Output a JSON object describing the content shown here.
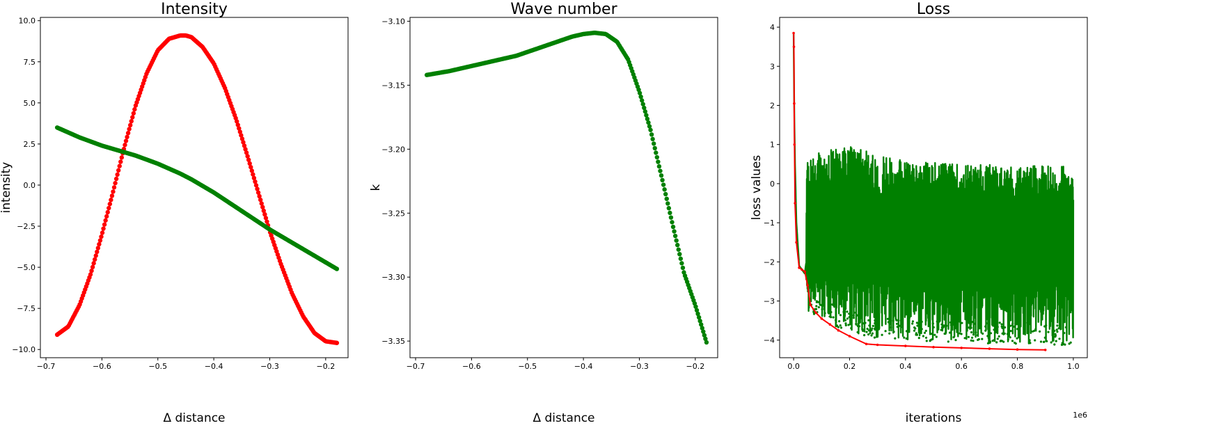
{
  "chart_data": [
    {
      "type": "scatter",
      "title": "Intensity",
      "xlabel": "Δ distance",
      "ylabel": "intensity",
      "xlim": [
        -0.71,
        -0.16
      ],
      "ylim": [
        -10.5,
        10.2
      ],
      "xticks": [
        -0.7,
        -0.6,
        -0.5,
        -0.4,
        -0.3,
        -0.2
      ],
      "xtick_labels": [
        "−0.7",
        "−0.6",
        "−0.5",
        "−0.4",
        "−0.3",
        "−0.2"
      ],
      "yticks": [
        10.0,
        7.5,
        5.0,
        2.5,
        0.0,
        -2.5,
        -5.0,
        -7.5,
        -10.0
      ],
      "ytick_labels": [
        "10.0",
        "7.5",
        "5.0",
        "2.5",
        "0.0",
        "−2.5",
        "−5.0",
        "−7.5",
        "−10.0"
      ],
      "grid": false,
      "series": [
        {
          "color": "#ff0000",
          "x": [
            -0.68,
            -0.66,
            -0.64,
            -0.62,
            -0.6,
            -0.58,
            -0.56,
            -0.54,
            -0.52,
            -0.5,
            -0.48,
            -0.46,
            -0.45,
            -0.44,
            -0.42,
            -0.4,
            -0.38,
            -0.36,
            -0.34,
            -0.32,
            -0.3,
            -0.28,
            -0.26,
            -0.24,
            -0.22,
            -0.2,
            -0.18
          ],
          "y": [
            -9.1,
            -8.6,
            -7.3,
            -5.4,
            -3.0,
            -0.4,
            2.3,
            4.8,
            6.8,
            8.2,
            8.9,
            9.1,
            9.1,
            9.0,
            8.4,
            7.4,
            5.9,
            4.0,
            1.8,
            -0.5,
            -2.8,
            -4.8,
            -6.6,
            -8.0,
            -9.0,
            -9.5,
            -9.6
          ]
        },
        {
          "color": "#008000",
          "x": [
            -0.68,
            -0.66,
            -0.64,
            -0.62,
            -0.6,
            -0.58,
            -0.56,
            -0.54,
            -0.52,
            -0.5,
            -0.48,
            -0.46,
            -0.44,
            -0.42,
            -0.4,
            -0.38,
            -0.36,
            -0.34,
            -0.32,
            -0.3,
            -0.28,
            -0.26,
            -0.24,
            -0.22,
            -0.2,
            -0.18
          ],
          "y": [
            3.5,
            3.2,
            2.9,
            2.65,
            2.4,
            2.2,
            2.0,
            1.8,
            1.55,
            1.3,
            1.0,
            0.7,
            0.35,
            -0.05,
            -0.45,
            -0.9,
            -1.35,
            -1.8,
            -2.25,
            -2.7,
            -3.1,
            -3.5,
            -3.9,
            -4.3,
            -4.7,
            -5.1
          ]
        }
      ]
    },
    {
      "type": "scatter",
      "title": "Wave number",
      "xlabel": "Δ distance",
      "ylabel": "k",
      "xlim": [
        -0.71,
        -0.16
      ],
      "ylim": [
        -3.363,
        -3.097
      ],
      "xticks": [
        -0.7,
        -0.6,
        -0.5,
        -0.4,
        -0.3,
        -0.2
      ],
      "xtick_labels": [
        "−0.7",
        "−0.6",
        "−0.5",
        "−0.4",
        "−0.3",
        "−0.2"
      ],
      "yticks": [
        -3.1,
        -3.15,
        -3.2,
        -3.25,
        -3.3,
        -3.35
      ],
      "ytick_labels": [
        "−3.10",
        "−3.15",
        "−3.20",
        "−3.25",
        "−3.30",
        "−3.35"
      ],
      "grid": false,
      "series": [
        {
          "color": "#008000",
          "x": [
            -0.68,
            -0.64,
            -0.6,
            -0.56,
            -0.52,
            -0.48,
            -0.44,
            -0.42,
            -0.4,
            -0.38,
            -0.36,
            -0.34,
            -0.32,
            -0.3,
            -0.28,
            -0.26,
            -0.24,
            -0.22,
            -0.2,
            -0.18
          ],
          "y": [
            -3.142,
            -3.139,
            -3.135,
            -3.131,
            -3.127,
            -3.121,
            -3.115,
            -3.112,
            -3.11,
            -3.109,
            -3.11,
            -3.116,
            -3.13,
            -3.155,
            -3.185,
            -3.222,
            -3.26,
            -3.297,
            -3.322,
            -3.351
          ]
        }
      ]
    },
    {
      "type": "line",
      "title": "Loss",
      "xlabel": "iterations",
      "ylabel": "loss values",
      "x_offset_label": "1e6",
      "xlim": [
        -0.05,
        1.05
      ],
      "ylim": [
        -4.45,
        4.25
      ],
      "xticks": [
        0.0,
        0.2,
        0.4,
        0.6,
        0.8,
        1.0
      ],
      "xtick_labels": [
        "0.0",
        "0.2",
        "0.4",
        "0.6",
        "0.8",
        "1.0"
      ],
      "yticks": [
        4,
        3,
        2,
        1,
        0,
        -1,
        -2,
        -3,
        -4
      ],
      "ytick_labels": [
        "4",
        "3",
        "2",
        "1",
        "0",
        "−1",
        "−2",
        "−3",
        "−4"
      ],
      "grid": false,
      "series": [
        {
          "color": "#008000",
          "x": [
            0.0,
            0.002,
            0.005,
            0.01,
            0.02,
            0.03,
            0.04,
            0.045,
            0.05,
            0.1,
            0.2,
            0.3,
            0.4,
            0.5,
            0.6,
            0.7,
            0.8,
            0.9,
            1.0
          ],
          "y": [
            3.85,
            2.0,
            0.5,
            -1.0,
            -2.1,
            -2.2,
            -2.3,
            -2.0,
            -1.8,
            -1.7,
            -1.6,
            -1.6,
            -1.6,
            -1.6,
            -1.6,
            -1.6,
            -1.6,
            -1.6,
            -1.6
          ],
          "band_upper": [
            3.85,
            2.05,
            0.6,
            -0.5,
            -2.0,
            -2.1,
            -2.1,
            0.3,
            0.7,
            0.85,
            0.95,
            0.75,
            0.6,
            0.55,
            0.5,
            0.5,
            0.45,
            0.45,
            0.5
          ],
          "band_lower": [
            3.85,
            1.9,
            0.2,
            -1.5,
            -2.2,
            -2.25,
            -2.4,
            -3.0,
            -3.3,
            -3.5,
            -3.8,
            -3.95,
            -4.0,
            -4.05,
            -4.05,
            -4.1,
            -4.1,
            -4.1,
            -4.15
          ]
        },
        {
          "color": "#ff0000",
          "x": [
            0.0,
            0.001,
            0.002,
            0.003,
            0.005,
            0.01,
            0.02,
            0.03,
            0.04,
            0.05,
            0.06,
            0.08,
            0.1,
            0.13,
            0.16,
            0.2,
            0.26,
            0.3,
            0.4,
            0.5,
            0.6,
            0.7,
            0.8,
            0.9
          ],
          "y": [
            3.85,
            3.5,
            2.05,
            1.0,
            -0.5,
            -1.5,
            -2.15,
            -2.2,
            -2.25,
            -2.6,
            -3.1,
            -3.3,
            -3.45,
            -3.6,
            -3.75,
            -3.9,
            -4.1,
            -4.12,
            -4.15,
            -4.18,
            -4.2,
            -4.22,
            -4.24,
            -4.25
          ]
        }
      ]
    }
  ]
}
